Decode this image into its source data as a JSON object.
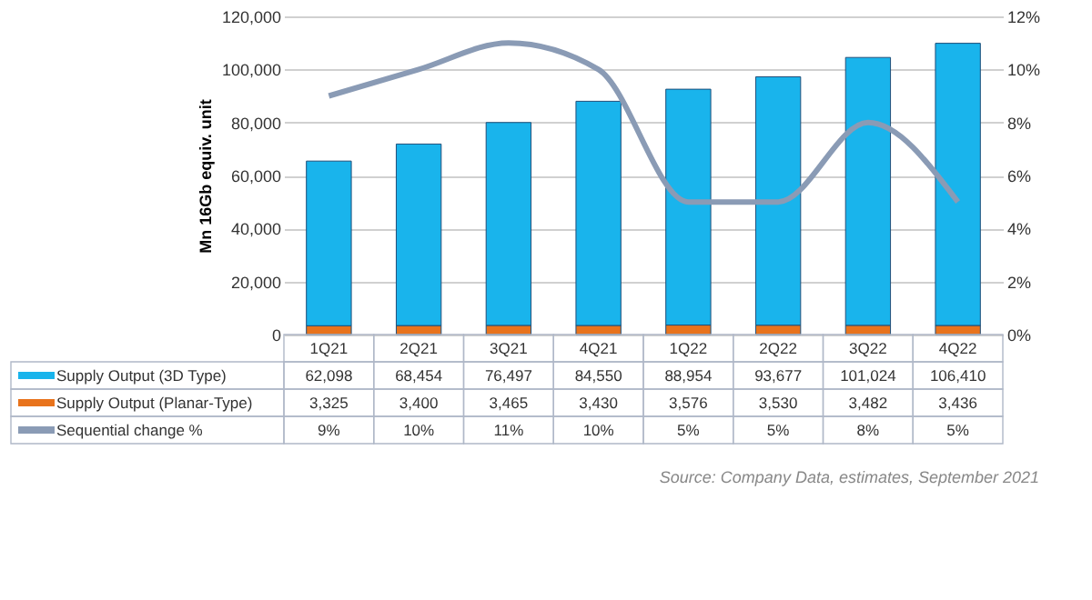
{
  "chart_data": {
    "type": "bar",
    "stacked": true,
    "categories": [
      "1Q21",
      "2Q21",
      "3Q21",
      "4Q21",
      "1Q22",
      "2Q22",
      "3Q22",
      "4Q22"
    ],
    "ylabel": "Mn 16Gb equiv. unit",
    "ylim": [
      0,
      120000
    ],
    "yticks": [
      {
        "value": 0,
        "label": "0"
      },
      {
        "value": 20000,
        "label": "20,000"
      },
      {
        "value": 40000,
        "label": "40,000"
      },
      {
        "value": 60000,
        "label": "60,000"
      },
      {
        "value": 80000,
        "label": "80,000"
      },
      {
        "value": 100000,
        "label": "100,000"
      },
      {
        "value": 120000,
        "label": "120,000"
      }
    ],
    "y2lim": [
      0,
      12
    ],
    "y2ticks": [
      {
        "value": 0,
        "label": "0%"
      },
      {
        "value": 2,
        "label": "2%"
      },
      {
        "value": 4,
        "label": "4%"
      },
      {
        "value": 6,
        "label": "6%"
      },
      {
        "value": 8,
        "label": "8%"
      },
      {
        "value": 10,
        "label": "10%"
      },
      {
        "value": 12,
        "label": "12%"
      }
    ],
    "series": [
      {
        "name": "Supply Output (Planar-Type)",
        "color": "#e8731c",
        "values": [
          3325,
          3400,
          3465,
          3430,
          3576,
          3530,
          3482,
          3436
        ],
        "value_labels": [
          "3,325",
          "3,400",
          "3,465",
          "3,430",
          "3,576",
          "3,530",
          "3,482",
          "3,436"
        ]
      },
      {
        "name": "Supply Output (3D Type)",
        "color": "#19b4ec",
        "values": [
          62098,
          68454,
          76497,
          84550,
          88954,
          93677,
          101024,
          106410
        ],
        "value_labels": [
          "62,098",
          "68,454",
          "76,497",
          "84,550",
          "88,954",
          "93,677",
          "101,024",
          "106,410"
        ]
      },
      {
        "name": "Sequential change %",
        "type": "line",
        "axis": "y2",
        "color": "#8a9bb5",
        "values": [
          9,
          10,
          11,
          10,
          5,
          5,
          8,
          5
        ],
        "value_labels": [
          "9%",
          "10%",
          "11%",
          "10%",
          "5%",
          "5%",
          "8%",
          "5%"
        ]
      }
    ],
    "grid": "y",
    "legend": "bottom left",
    "annotations": [
      "Source: Company Data, estimates, September 2021"
    ]
  }
}
